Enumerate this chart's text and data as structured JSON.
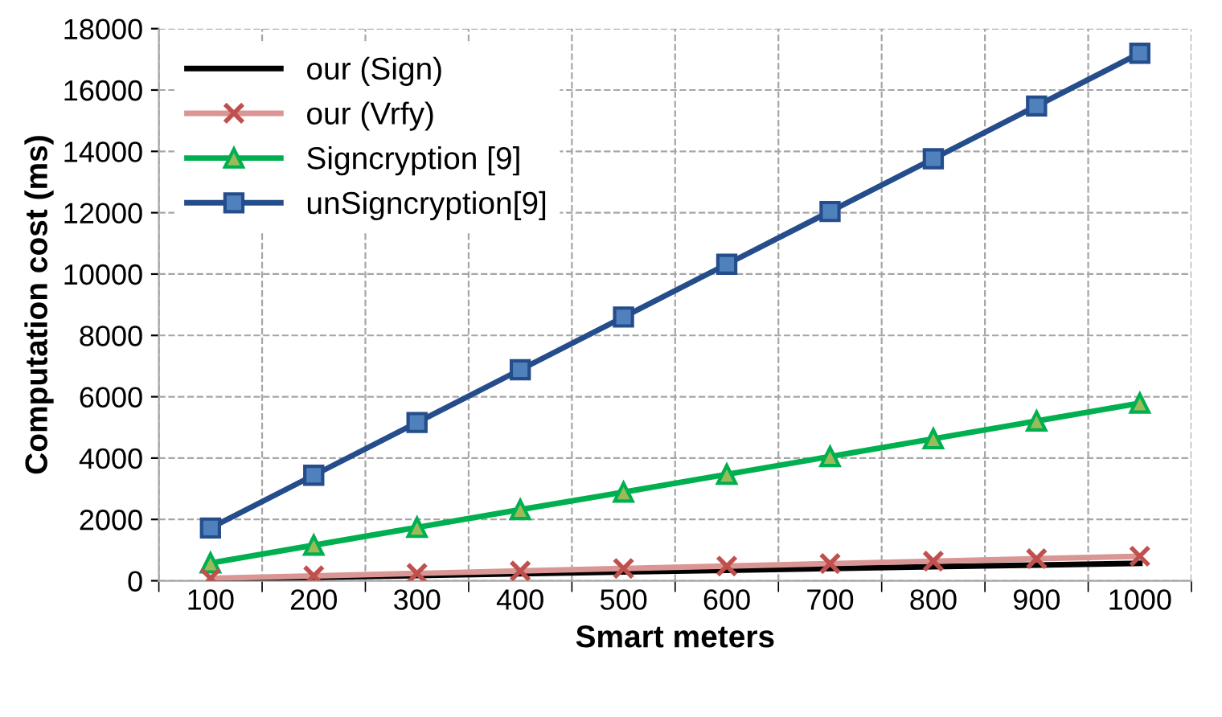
{
  "chart_data": {
    "type": "line",
    "xlabel": "Smart meters",
    "ylabel": "Computation cost (ms)",
    "categories": [
      "100",
      "200",
      "300",
      "400",
      "500",
      "600",
      "700",
      "800",
      "900",
      "1000"
    ],
    "series": [
      {
        "name": "our (Sign)",
        "color": "#000000",
        "marker": "none",
        "values": [
          60,
          110,
          170,
          230,
          290,
          340,
          400,
          460,
          510,
          570
        ]
      },
      {
        "name": "our (Vrfy)",
        "color": "#d99694",
        "marker": "cross",
        "values": [
          80,
          160,
          240,
          320,
          400,
          480,
          560,
          640,
          720,
          800
        ]
      },
      {
        "name": "Signcryption [9]",
        "color": "#00b050",
        "marker": "triangle",
        "values": [
          580,
          1160,
          1740,
          2320,
          2890,
          3470,
          4050,
          4630,
          5210,
          5790
        ]
      },
      {
        "name": "unSigncryption[9]",
        "color": "#254d8c",
        "marker": "square",
        "values": [
          1720,
          3440,
          5160,
          6880,
          8600,
          10320,
          12040,
          13760,
          15480,
          17200
        ]
      }
    ],
    "ylim": [
      0,
      18000
    ],
    "yticks": [
      0,
      2000,
      4000,
      6000,
      8000,
      10000,
      12000,
      14000,
      16000,
      18000
    ],
    "grid": true,
    "legend": "top left"
  }
}
